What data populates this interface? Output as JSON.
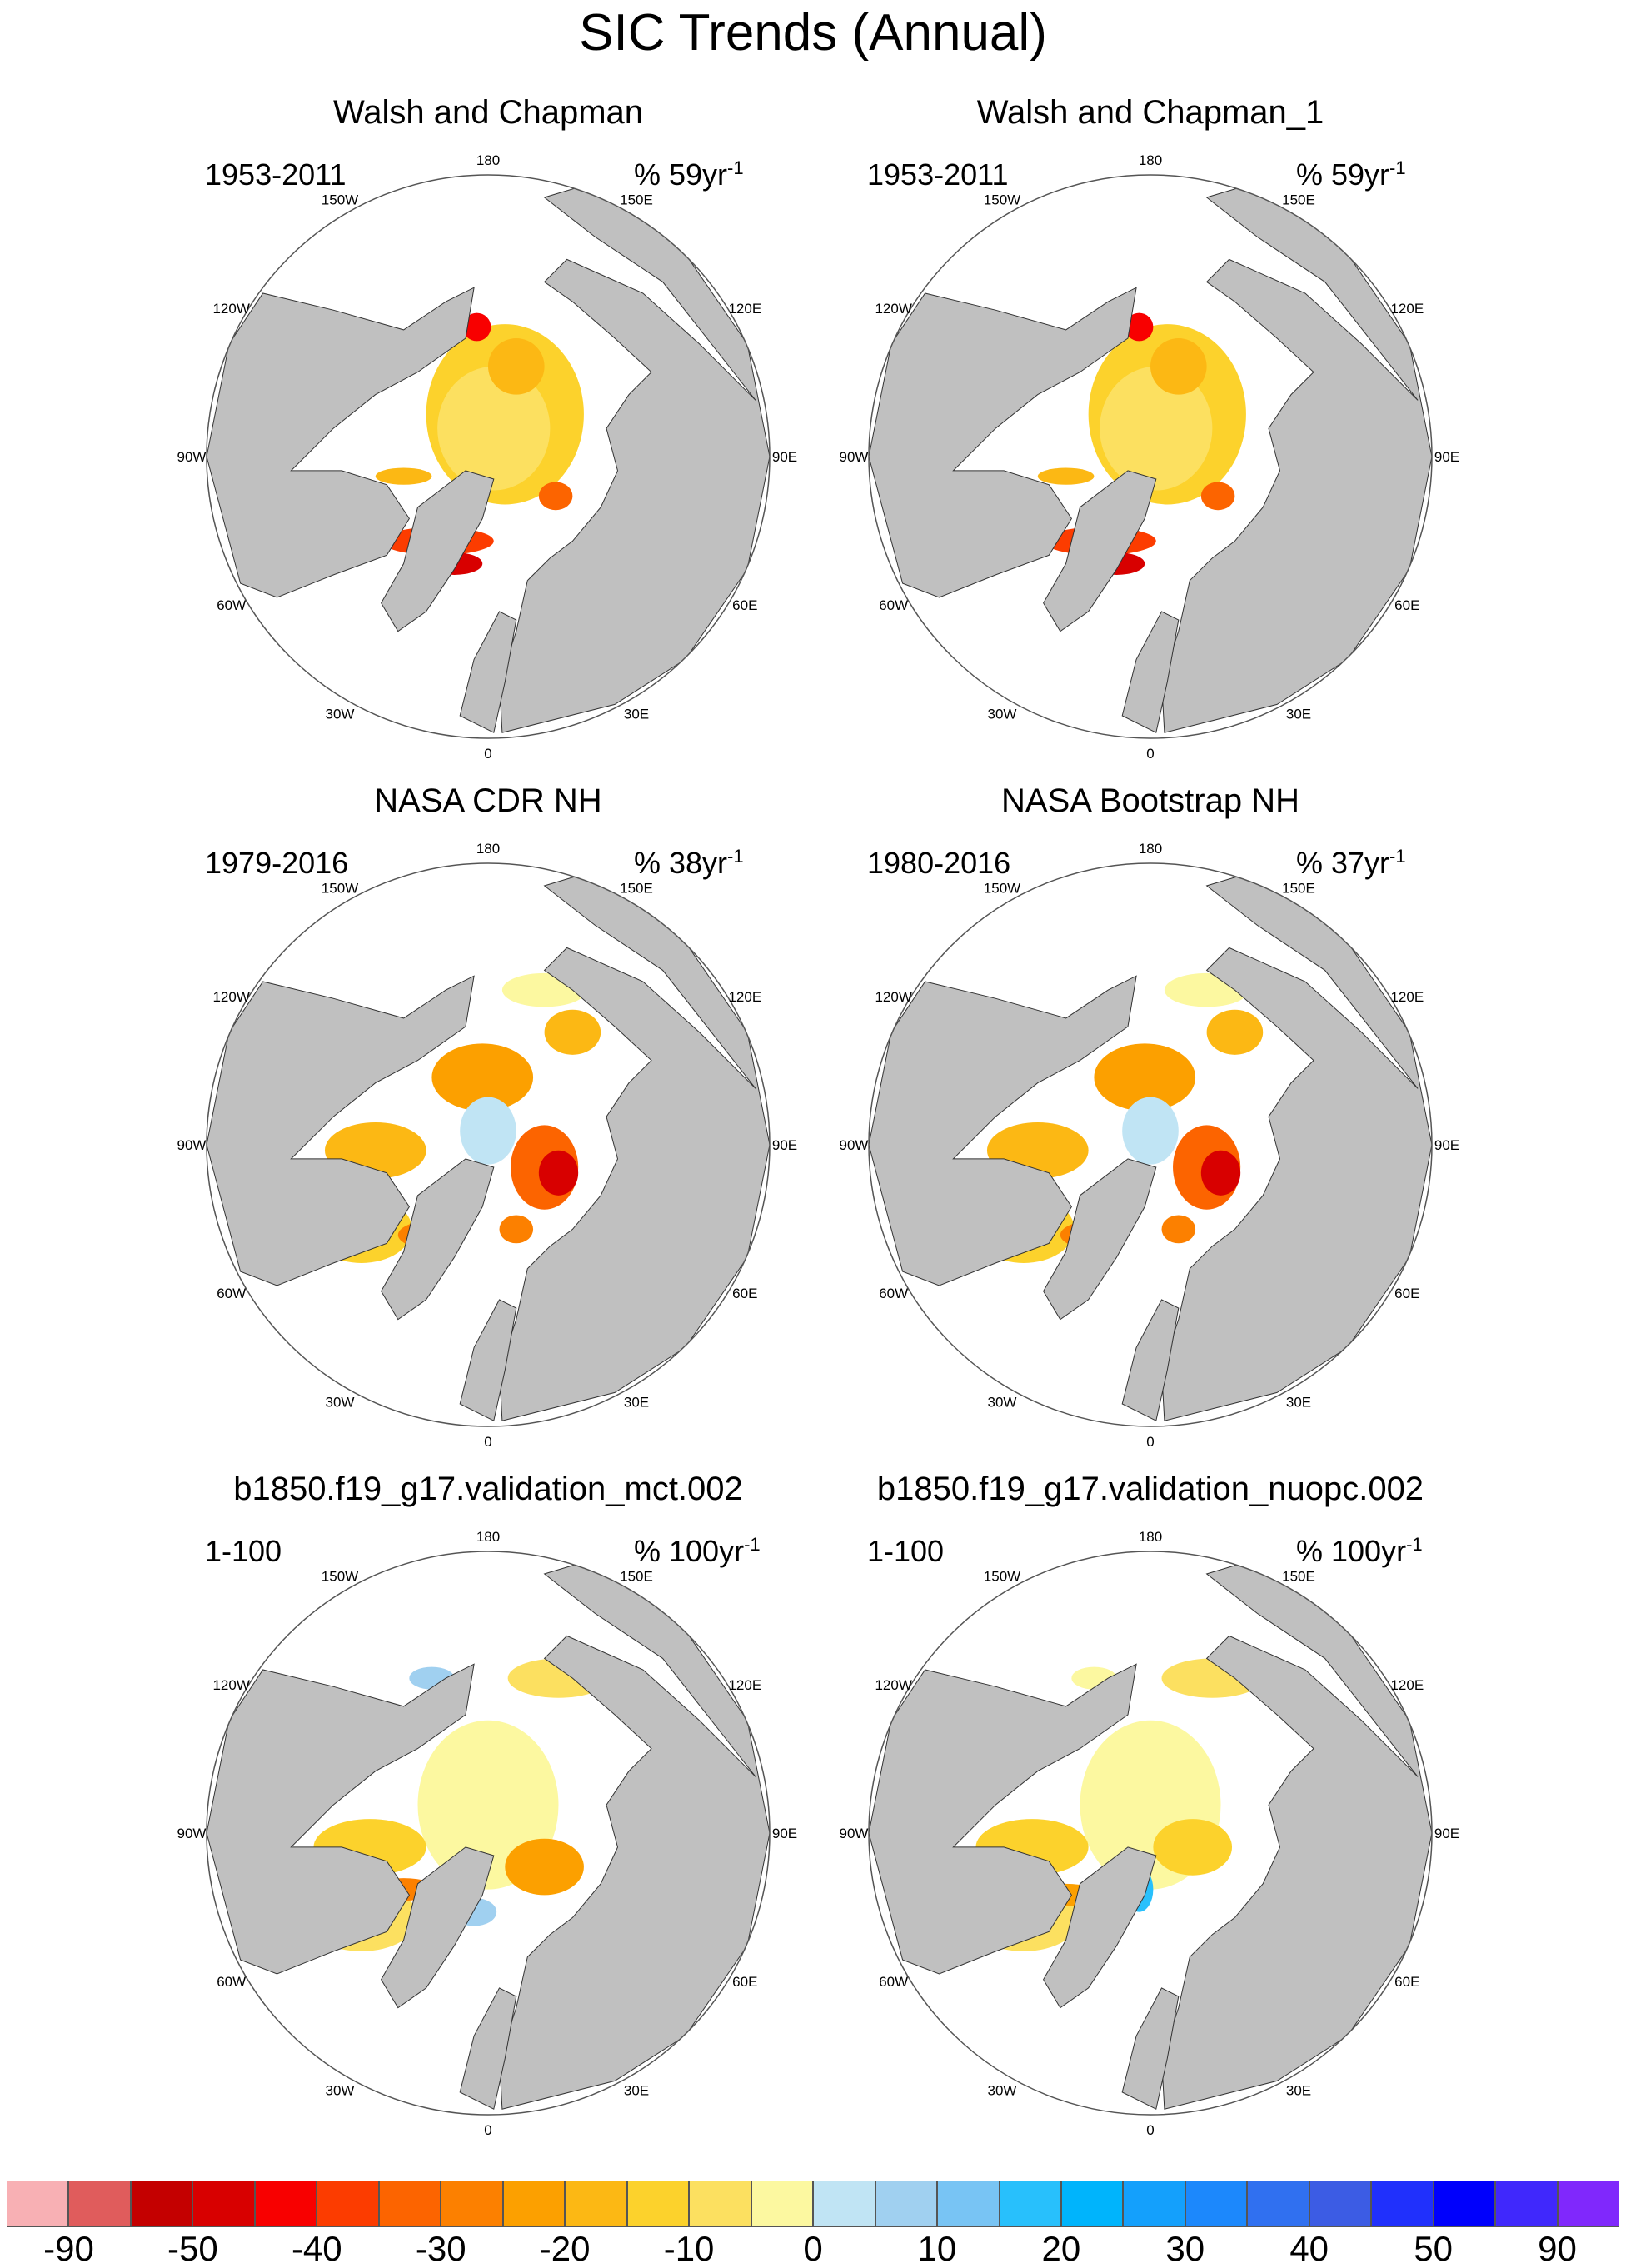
{
  "title": "SIC Trends (Annual)",
  "longitude_labels": [
    "180",
    "150E",
    "120E",
    "90E",
    "60E",
    "30E",
    "0",
    "30W",
    "60W",
    "90W",
    "120W",
    "150W"
  ],
  "panels": [
    {
      "title": "Walsh and Chapman",
      "period": "1953-2011",
      "units_value": "% 59yr",
      "units_exp": "-1",
      "pattern": "walsh"
    },
    {
      "title": "Walsh and Chapman_1",
      "period": "1953-2011",
      "units_value": "% 59yr",
      "units_exp": "-1",
      "pattern": "walsh"
    },
    {
      "title": "NASA CDR NH",
      "period": "1979-2016",
      "units_value": "% 38yr",
      "units_exp": "-1",
      "pattern": "nasa"
    },
    {
      "title": "NASA Bootstrap NH",
      "period": "1980-2016",
      "units_value": "% 37yr",
      "units_exp": "-1",
      "pattern": "nasa"
    },
    {
      "title": "b1850.f19_g17.validation_mct.002",
      "period": "1-100",
      "units_value": "% 100yr",
      "units_exp": "-1",
      "pattern": "model_a"
    },
    {
      "title": "b1850.f19_g17.validation_nuopc.002",
      "period": "1-100",
      "units_value": "% 100yr",
      "units_exp": "-1",
      "pattern": "model_b"
    }
  ],
  "colorbar": {
    "colors": [
      "#f8b0b4",
      "#e05c5c",
      "#c40000",
      "#d80000",
      "#f80000",
      "#fc3c00",
      "#fc6400",
      "#fc8000",
      "#fca000",
      "#fcb814",
      "#fcd22c",
      "#fce060",
      "#fcf8a0",
      "#c0e4f4",
      "#a0d0f0",
      "#78c4f4",
      "#28c0fc",
      "#00b4fc",
      "#14a0fc",
      "#1c88fc",
      "#3070f0",
      "#3c5ce4",
      "#2030fc",
      "#0000fc",
      "#4028fc",
      "#8028fc"
    ],
    "tick_labels": [
      "-90",
      "-50",
      "-40",
      "-30",
      "-20",
      "-10",
      "0",
      "10",
      "20",
      "30",
      "40",
      "50",
      "90"
    ]
  },
  "land_color": "#c0c0c0"
}
